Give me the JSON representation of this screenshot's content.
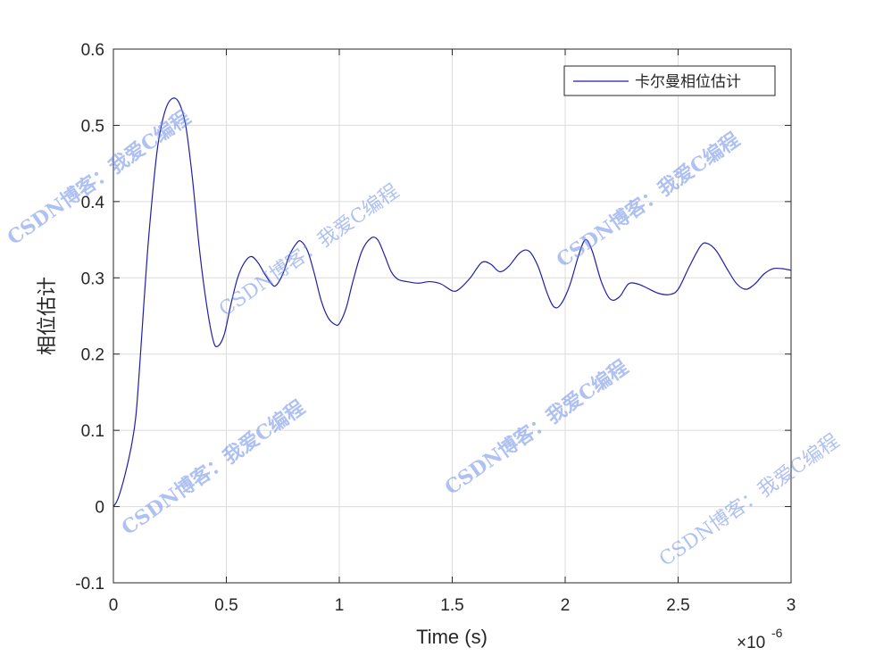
{
  "chart_data": {
    "type": "line",
    "xlabel": "Time (s)",
    "ylabel": "相位估计",
    "x_exponent": "×10^-6",
    "x_exponent_base": "×10",
    "x_exponent_power": "-6",
    "xlim": [
      0,
      3
    ],
    "ylim": [
      -0.1,
      0.6
    ],
    "x_ticks": [
      0,
      0.5,
      1,
      1.5,
      2,
      2.5,
      3
    ],
    "x_tick_labels": [
      "0",
      "0.5",
      "1",
      "1.5",
      "2",
      "2.5",
      "3"
    ],
    "y_ticks": [
      -0.1,
      0,
      0.1,
      0.2,
      0.3,
      0.4,
      0.5,
      0.6
    ],
    "y_tick_labels": [
      "-0.1",
      "0",
      "0.1",
      "0.2",
      "0.3",
      "0.4",
      "0.5",
      "0.6"
    ],
    "grid": true,
    "legend_position": "top-right",
    "series": [
      {
        "name": "卡尔曼相位估计",
        "color": "#1f1fa8",
        "points": [
          [
            0,
            0
          ],
          [
            0.02,
            0.01
          ],
          [
            0.05,
            0.04
          ],
          [
            0.08,
            0.08
          ],
          [
            0.1,
            0.12
          ],
          [
            0.12,
            0.2
          ],
          [
            0.15,
            0.33
          ],
          [
            0.18,
            0.43
          ],
          [
            0.2,
            0.48
          ],
          [
            0.23,
            0.52
          ],
          [
            0.26,
            0.535
          ],
          [
            0.29,
            0.53
          ],
          [
            0.32,
            0.5
          ],
          [
            0.35,
            0.43
          ],
          [
            0.38,
            0.34
          ],
          [
            0.41,
            0.27
          ],
          [
            0.44,
            0.22
          ],
          [
            0.46,
            0.21
          ],
          [
            0.49,
            0.225
          ],
          [
            0.52,
            0.265
          ],
          [
            0.55,
            0.3
          ],
          [
            0.58,
            0.32
          ],
          [
            0.61,
            0.328
          ],
          [
            0.64,
            0.32
          ],
          [
            0.67,
            0.305
          ],
          [
            0.7,
            0.292
          ],
          [
            0.72,
            0.29
          ],
          [
            0.75,
            0.305
          ],
          [
            0.78,
            0.33
          ],
          [
            0.81,
            0.345
          ],
          [
            0.83,
            0.348
          ],
          [
            0.86,
            0.335
          ],
          [
            0.89,
            0.305
          ],
          [
            0.92,
            0.27
          ],
          [
            0.95,
            0.248
          ],
          [
            0.98,
            0.239
          ],
          [
            1.0,
            0.24
          ],
          [
            1.03,
            0.26
          ],
          [
            1.06,
            0.295
          ],
          [
            1.1,
            0.335
          ],
          [
            1.14,
            0.352
          ],
          [
            1.17,
            0.35
          ],
          [
            1.2,
            0.33
          ],
          [
            1.23,
            0.308
          ],
          [
            1.26,
            0.298
          ],
          [
            1.3,
            0.295
          ],
          [
            1.35,
            0.293
          ],
          [
            1.4,
            0.295
          ],
          [
            1.45,
            0.292
          ],
          [
            1.5,
            0.283
          ],
          [
            1.53,
            0.285
          ],
          [
            1.58,
            0.3
          ],
          [
            1.63,
            0.32
          ],
          [
            1.67,
            0.318
          ],
          [
            1.71,
            0.308
          ],
          [
            1.75,
            0.315
          ],
          [
            1.8,
            0.333
          ],
          [
            1.84,
            0.335
          ],
          [
            1.88,
            0.315
          ],
          [
            1.92,
            0.28
          ],
          [
            1.95,
            0.262
          ],
          [
            1.98,
            0.265
          ],
          [
            2.02,
            0.29
          ],
          [
            2.06,
            0.33
          ],
          [
            2.09,
            0.35
          ],
          [
            2.12,
            0.335
          ],
          [
            2.16,
            0.295
          ],
          [
            2.2,
            0.272
          ],
          [
            2.24,
            0.275
          ],
          [
            2.28,
            0.292
          ],
          [
            2.32,
            0.292
          ],
          [
            2.36,
            0.287
          ],
          [
            2.41,
            0.28
          ],
          [
            2.46,
            0.278
          ],
          [
            2.5,
            0.285
          ],
          [
            2.55,
            0.315
          ],
          [
            2.6,
            0.342
          ],
          [
            2.63,
            0.345
          ],
          [
            2.67,
            0.335
          ],
          [
            2.72,
            0.31
          ],
          [
            2.76,
            0.292
          ],
          [
            2.8,
            0.285
          ],
          [
            2.84,
            0.292
          ],
          [
            2.88,
            0.305
          ],
          [
            2.92,
            0.312
          ],
          [
            2.96,
            0.312
          ],
          [
            3.0,
            0.31
          ]
        ]
      }
    ]
  },
  "watermark": {
    "text": "CSDN博客：我爱C编程"
  }
}
